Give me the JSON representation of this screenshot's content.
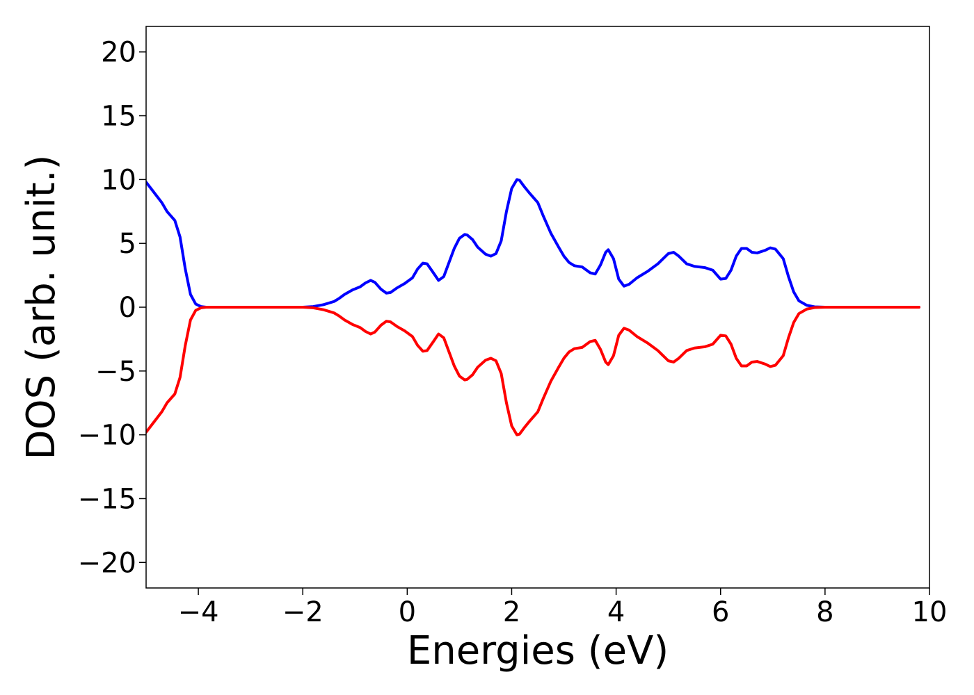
{
  "chart_data": {
    "type": "line",
    "title": "",
    "xlabel": "Energies (eV)",
    "ylabel": "DOS (arb. unit.)",
    "xlim": [
      -5,
      10
    ],
    "ylim": [
      -22,
      22
    ],
    "xticks": [
      -4,
      -2,
      0,
      2,
      4,
      6,
      8,
      10
    ],
    "xtick_labels": [
      "−4",
      "−2",
      "0",
      "2",
      "4",
      "6",
      "8",
      "10"
    ],
    "yticks": [
      20,
      15,
      10,
      5,
      0,
      -5,
      -10,
      -15,
      -20
    ],
    "ytick_labels": [
      "20",
      "15",
      "10",
      "5",
      "0",
      "−5",
      "−10",
      "−15",
      "−20"
    ],
    "grid": false,
    "legend": "none",
    "series": [
      {
        "color": "#0000ff",
        "x": [
          -5.0,
          -4.85,
          -4.7,
          -4.6,
          -4.45,
          -4.35,
          -4.25,
          -4.15,
          -4.05,
          -3.95,
          -3.85,
          -3.7,
          -3.5,
          -3.0,
          -2.5,
          -2.0,
          -1.8,
          -1.6,
          -1.4,
          -1.3,
          -1.2,
          -1.05,
          -0.9,
          -0.8,
          -0.7,
          -0.62,
          -0.5,
          -0.4,
          -0.32,
          -0.2,
          -0.05,
          0.1,
          0.2,
          0.3,
          0.38,
          0.5,
          0.6,
          0.7,
          0.8,
          0.9,
          1.0,
          1.1,
          1.15,
          1.25,
          1.35,
          1.5,
          1.6,
          1.7,
          1.8,
          1.9,
          2.0,
          2.1,
          2.15,
          2.25,
          2.35,
          2.5,
          2.6,
          2.75,
          2.9,
          3.0,
          3.1,
          3.2,
          3.35,
          3.5,
          3.6,
          3.7,
          3.8,
          3.85,
          3.95,
          4.05,
          4.15,
          4.25,
          4.4,
          4.6,
          4.8,
          4.9,
          5.0,
          5.1,
          5.2,
          5.35,
          5.5,
          5.7,
          5.85,
          6.0,
          6.1,
          6.2,
          6.3,
          6.4,
          6.5,
          6.6,
          6.7,
          6.85,
          6.95,
          7.05,
          7.2,
          7.3,
          7.4,
          7.5,
          7.65,
          7.8,
          8.0,
          8.5,
          9.0,
          9.5,
          9.8
        ],
        "y": [
          9.8,
          9.0,
          8.2,
          7.5,
          6.8,
          5.5,
          3.0,
          1.0,
          0.25,
          0.05,
          0.0,
          0.0,
          0.0,
          0.0,
          0.0,
          0.0,
          0.05,
          0.2,
          0.45,
          0.7,
          1.0,
          1.35,
          1.6,
          1.9,
          2.1,
          1.95,
          1.4,
          1.1,
          1.15,
          1.5,
          1.85,
          2.3,
          3.0,
          3.45,
          3.4,
          2.7,
          2.1,
          2.4,
          3.5,
          4.6,
          5.4,
          5.7,
          5.65,
          5.3,
          4.7,
          4.15,
          4.0,
          4.2,
          5.2,
          7.5,
          9.3,
          10.0,
          9.95,
          9.4,
          8.9,
          8.2,
          7.2,
          5.8,
          4.7,
          4.0,
          3.5,
          3.25,
          3.15,
          2.7,
          2.6,
          3.3,
          4.3,
          4.5,
          3.8,
          2.2,
          1.65,
          1.8,
          2.3,
          2.8,
          3.4,
          3.8,
          4.2,
          4.3,
          4.0,
          3.4,
          3.2,
          3.1,
          2.9,
          2.2,
          2.25,
          2.9,
          4.0,
          4.6,
          4.6,
          4.3,
          4.25,
          4.45,
          4.65,
          4.55,
          3.8,
          2.4,
          1.2,
          0.5,
          0.15,
          0.03,
          0.0,
          0.0,
          0.0,
          0.0,
          0.0
        ]
      },
      {
        "color": "#ff0000",
        "x": [
          -5.0,
          -4.85,
          -4.7,
          -4.6,
          -4.45,
          -4.35,
          -4.25,
          -4.15,
          -4.05,
          -3.95,
          -3.85,
          -3.7,
          -3.5,
          -3.0,
          -2.5,
          -2.0,
          -1.8,
          -1.6,
          -1.4,
          -1.3,
          -1.2,
          -1.05,
          -0.9,
          -0.8,
          -0.7,
          -0.62,
          -0.5,
          -0.4,
          -0.32,
          -0.2,
          -0.05,
          0.1,
          0.2,
          0.3,
          0.38,
          0.5,
          0.6,
          0.7,
          0.8,
          0.9,
          1.0,
          1.1,
          1.15,
          1.25,
          1.35,
          1.5,
          1.6,
          1.7,
          1.8,
          1.9,
          2.0,
          2.1,
          2.15,
          2.25,
          2.35,
          2.5,
          2.6,
          2.75,
          2.9,
          3.0,
          3.1,
          3.2,
          3.35,
          3.5,
          3.6,
          3.7,
          3.8,
          3.85,
          3.95,
          4.05,
          4.15,
          4.25,
          4.4,
          4.6,
          4.8,
          4.9,
          5.0,
          5.1,
          5.2,
          5.35,
          5.5,
          5.7,
          5.85,
          6.0,
          6.1,
          6.2,
          6.3,
          6.4,
          6.5,
          6.6,
          6.7,
          6.85,
          6.95,
          7.05,
          7.2,
          7.3,
          7.4,
          7.5,
          7.65,
          7.8,
          8.0,
          8.5,
          9.0,
          9.5,
          9.8
        ],
        "y": [
          -9.8,
          -9.0,
          -8.2,
          -7.5,
          -6.8,
          -5.5,
          -3.0,
          -1.0,
          -0.25,
          -0.05,
          0.0,
          0.0,
          0.0,
          0.0,
          0.0,
          0.0,
          -0.05,
          -0.2,
          -0.45,
          -0.7,
          -1.0,
          -1.35,
          -1.6,
          -1.9,
          -2.1,
          -1.95,
          -1.4,
          -1.1,
          -1.15,
          -1.5,
          -1.85,
          -2.3,
          -3.0,
          -3.45,
          -3.4,
          -2.7,
          -2.1,
          -2.4,
          -3.5,
          -4.6,
          -5.4,
          -5.7,
          -5.65,
          -5.3,
          -4.7,
          -4.15,
          -4.0,
          -4.2,
          -5.2,
          -7.5,
          -9.3,
          -10.0,
          -9.95,
          -9.4,
          -8.9,
          -8.2,
          -7.2,
          -5.8,
          -4.7,
          -4.0,
          -3.5,
          -3.25,
          -3.15,
          -2.7,
          -2.6,
          -3.3,
          -4.3,
          -4.5,
          -3.8,
          -2.2,
          -1.65,
          -1.8,
          -2.3,
          -2.8,
          -3.4,
          -3.8,
          -4.2,
          -4.3,
          -4.0,
          -3.4,
          -3.2,
          -3.1,
          -2.9,
          -2.2,
          -2.25,
          -2.9,
          -4.0,
          -4.6,
          -4.6,
          -4.3,
          -4.25,
          -4.45,
          -4.65,
          -4.55,
          -3.8,
          -2.4,
          -1.2,
          -0.5,
          -0.15,
          -0.03,
          0.0,
          0.0,
          0.0,
          0.0,
          0.0
        ]
      }
    ]
  }
}
